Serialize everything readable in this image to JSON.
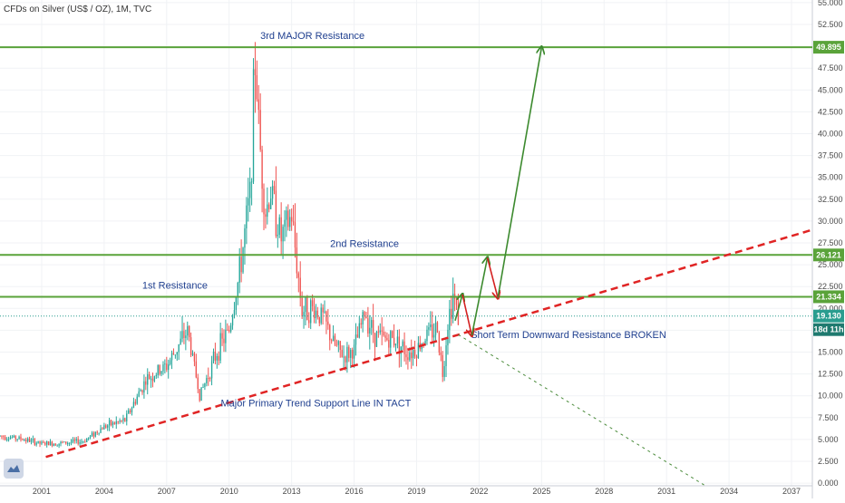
{
  "chart_data": {
    "type": "candlestick",
    "title": "CFDs on Silver (US$ / OZ), 1M, TVC",
    "x_range": [
      1999.0,
      2038.0
    ],
    "y_range": [
      -0.3,
      55.3
    ],
    "y_ticks": [
      0,
      2.5,
      5,
      7.5,
      10,
      12.5,
      15,
      17.5,
      20,
      22.5,
      25,
      27.5,
      30,
      32.5,
      35,
      37.5,
      40,
      42.5,
      45,
      47.5,
      50,
      52.5,
      55
    ],
    "y_tick_labels": [
      "0.000",
      "2.500",
      "5.000",
      "7.500",
      "10.000",
      "12.500",
      "15.000",
      "17.500",
      "20.000",
      "22.500",
      "25.000",
      "27.500",
      "30.000",
      "32.500",
      "35.000",
      "37.500",
      "40.000",
      "42.500",
      "45.000",
      "47.500",
      "50.000",
      "52.500",
      "55.000"
    ],
    "x_ticks": [
      2001,
      2004,
      2007,
      2010,
      2013,
      2016,
      2019,
      2022,
      2025,
      2028,
      2031,
      2034,
      2037
    ],
    "x_tick_labels": [
      "2001",
      "2004",
      "2007",
      "2010",
      "2013",
      "2016",
      "2019",
      "2022",
      "2025",
      "2028",
      "2031",
      "2034",
      "2037"
    ],
    "price_path": [
      [
        1999.0,
        5.4
      ],
      [
        2000.0,
        5.1
      ],
      [
        2001.0,
        4.5
      ],
      [
        2002.0,
        4.6
      ],
      [
        2003.0,
        4.8
      ],
      [
        2004.0,
        6.5
      ],
      [
        2005.0,
        7.2
      ],
      [
        2006.0,
        11.8
      ],
      [
        2007.0,
        13.4
      ],
      [
        2008.0,
        17.5
      ],
      [
        2008.6,
        10.0
      ],
      [
        2009.0,
        12.5
      ],
      [
        2009.5,
        15.5
      ],
      [
        2010.0,
        17.5
      ],
      [
        2010.5,
        24.0
      ],
      [
        2011.0,
        33.0
      ],
      [
        2011.25,
        48.5
      ],
      [
        2011.5,
        38.0
      ],
      [
        2011.75,
        31.0
      ],
      [
        2012.0,
        33.5
      ],
      [
        2012.5,
        28.0
      ],
      [
        2013.0,
        30.5
      ],
      [
        2013.5,
        19.8
      ],
      [
        2014.0,
        20.0
      ],
      [
        2014.5,
        19.0
      ],
      [
        2015.0,
        16.0
      ],
      [
        2015.5,
        14.5
      ],
      [
        2016.0,
        15.2
      ],
      [
        2016.5,
        19.5
      ],
      [
        2017.0,
        17.0
      ],
      [
        2017.5,
        16.5
      ],
      [
        2018.0,
        16.5
      ],
      [
        2018.5,
        15.0
      ],
      [
        2019.0,
        15.3
      ],
      [
        2019.5,
        17.0
      ],
      [
        2020.0,
        17.8
      ],
      [
        2020.25,
        12.5
      ],
      [
        2020.5,
        18.5
      ],
      [
        2020.75,
        21.5
      ],
      [
        2021.0,
        19.13
      ]
    ],
    "current_price": 19.13,
    "current_price_label": "19.130",
    "countdown_label": "18d 11h",
    "horizontal_levels": [
      {
        "value": 49.895,
        "label": "49.895",
        "name": "3rd MAJOR Resistance",
        "label_x": 2014.0
      },
      {
        "value": 26.121,
        "label": "26.121",
        "name": "2nd Resistance",
        "label_x": 2016.5
      },
      {
        "value": 21.334,
        "label": "21.334",
        "name": "1st Resistance",
        "label_x": 2007.4
      }
    ],
    "trend_lines": [
      {
        "name": "Major Primary Trend Support Line IN TACT",
        "x1": 2001.2,
        "y1": 3.0,
        "x2": 2038.0,
        "y2": 29.0,
        "style": "dashed",
        "color": "#e02424",
        "label_x": 2009.6,
        "label_y": 8.8
      },
      {
        "name": "Short Term Downward Resistance BROKEN",
        "x1": 2021.0,
        "y1": 17.0,
        "x2": 2032.8,
        "y2": -0.2,
        "style": "dotted",
        "color": "#4a8b3a",
        "label_x": 2021.6,
        "label_y": 16.6
      }
    ],
    "projection_path": [
      [
        2020.85,
        18.6
      ],
      [
        2021.2,
        21.6
      ],
      [
        2021.65,
        16.9
      ],
      [
        2022.4,
        25.8
      ],
      [
        2022.9,
        21.2
      ],
      [
        2025.0,
        49.9
      ]
    ],
    "colors": {
      "up": "#26a69a",
      "down": "#ef5350",
      "resistance": "#5aa33a",
      "trend": "#e02424",
      "projection_up": "#3c8a2e",
      "projection_down": "#d42020",
      "price_badge": "#2a9d8f",
      "countdown_badge": "#1f7a6f"
    }
  },
  "header": {
    "title": "CFDs on Silver (US$ / OZ), 1M, TVC"
  }
}
